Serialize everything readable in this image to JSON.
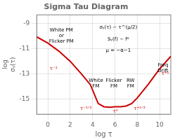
{
  "chart_data": {
    "type": "line",
    "title": "Sigma Tau Diagram",
    "xlabel": "log τ",
    "ylabel": [
      "log",
      "σᵧ(τ)"
    ],
    "x": [
      -1.0,
      0.0,
      1.0,
      2.0,
      3.0,
      3.8,
      4.5,
      5.0,
      5.5,
      6.0,
      6.5,
      7.0,
      7.5,
      8.0,
      9.0,
      10.0,
      11.0
    ],
    "values": [
      -10.05,
      -10.55,
      -11.2,
      -12.0,
      -13.0,
      -13.85,
      -15.35,
      -15.6,
      -15.65,
      -15.6,
      -15.6,
      -15.55,
      -15.35,
      -14.9,
      -13.8,
      -12.6,
      -11.6
    ],
    "color": "#cc0000",
    "xlim": [
      -1,
      11
    ],
    "xticks": [
      0,
      2,
      4,
      6,
      8,
      10
    ],
    "ylim": [
      -16.2,
      -8.3
    ],
    "yticks": [
      -9,
      -11,
      -13,
      -15
    ],
    "grid": true,
    "annotations": [
      {
        "text": "White PM\nor\nFlicker PM",
        "x": 1.2,
        "y": -9.35
      },
      {
        "text": "White\nFM",
        "x": 4.3,
        "y": -13.35
      },
      {
        "text": "Flicker\nFM",
        "x": 5.9,
        "y": -13.35
      },
      {
        "text": "RW\nFM",
        "x": 7.4,
        "y": -13.35
      },
      {
        "text": "Freq\nDrift",
        "x": 10.3,
        "y": -12.1
      },
      {
        "text": "τ⁻¹",
        "x": 0.5,
        "y": -12.6,
        "color": "#cc0000"
      },
      {
        "text": "τ⁻¹ᐟ²",
        "x": 3.4,
        "y": -15.75,
        "color": "#cc0000"
      },
      {
        "text": "τ⁰",
        "x": 6.05,
        "y": -16.0,
        "color": "#cc0000"
      },
      {
        "text": "τ⁺¹ᐟ²",
        "x": 8.2,
        "y": -15.75,
        "color": "#cc0000"
      },
      {
        "text": "τ⁺¹",
        "x": 10.5,
        "y": -13.0,
        "color": "#cc0000"
      },
      {
        "text": "σᵧ(τ) ∼ τ^(μ/2)",
        "x": 6.3,
        "y": -9.1
      },
      {
        "text": "Sᵧ(f) ∼ fᵅ",
        "x": 6.3,
        "y": -10.05
      },
      {
        "text": "μ = −α−1",
        "x": 6.3,
        "y": -10.95
      }
    ]
  }
}
